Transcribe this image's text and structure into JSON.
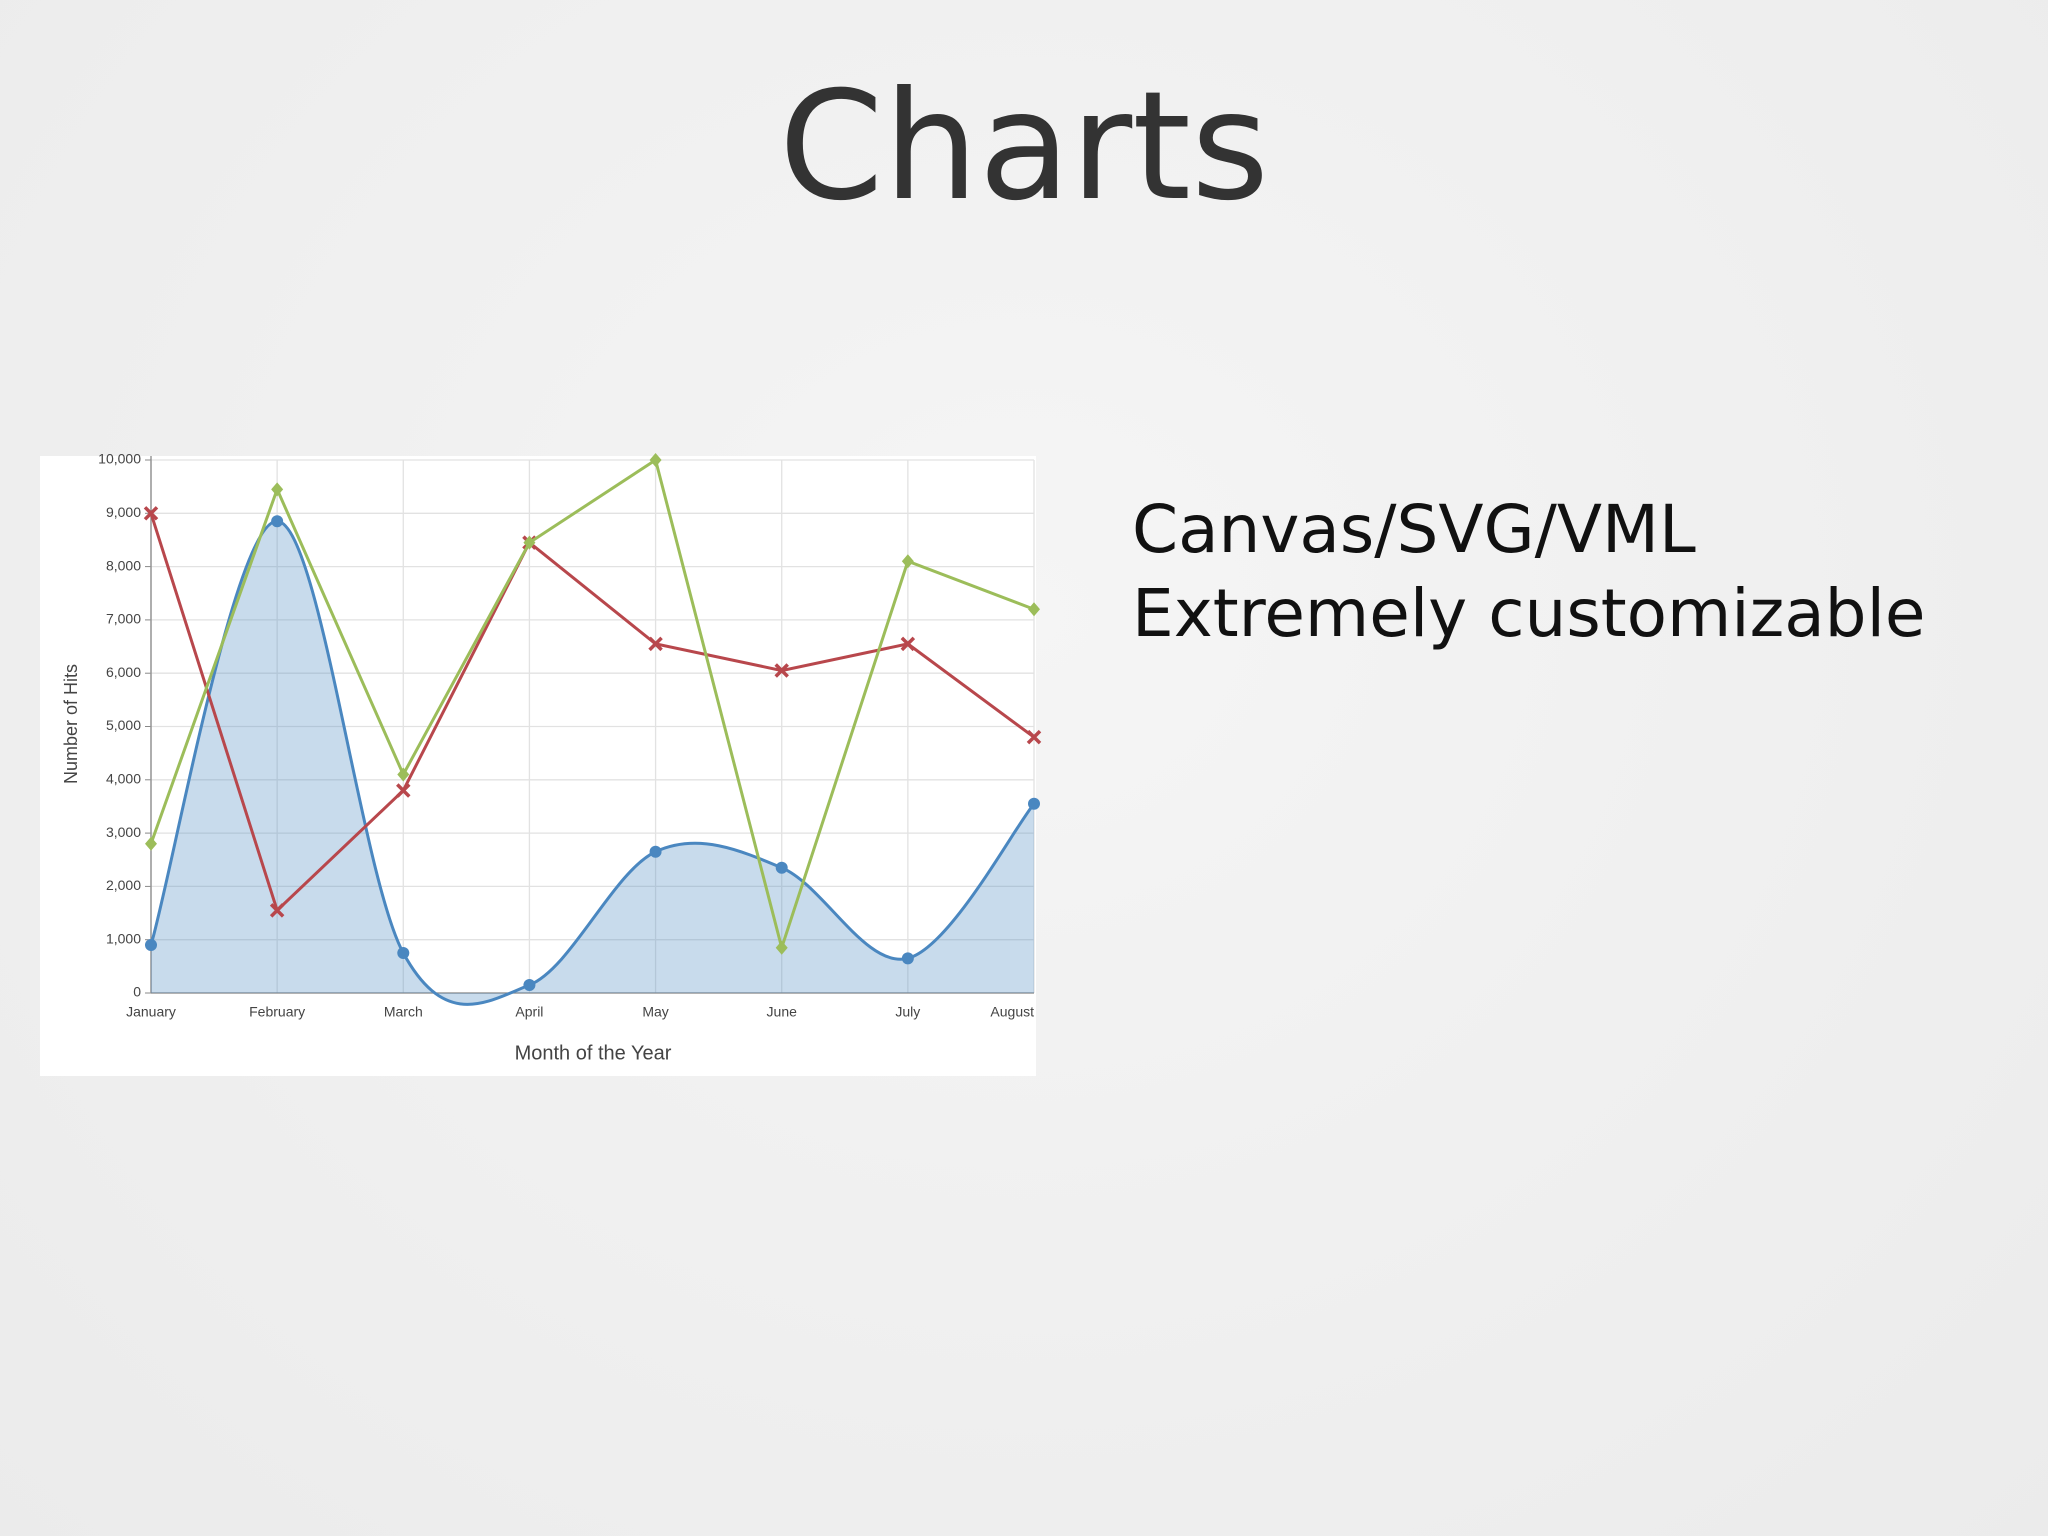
{
  "slide": {
    "title": "Charts",
    "bullets": [
      "Canvas/SVG/VML",
      "Extremely customizable"
    ]
  },
  "chart_data": {
    "type": "line",
    "x_label": "Month of the Year",
    "y_label": "Number of Hits",
    "categories": [
      "January",
      "February",
      "March",
      "April",
      "May",
      "June",
      "July",
      "August"
    ],
    "ylim": [
      0,
      10000
    ],
    "yticks": [
      0,
      {
        "value": 1000,
        "label": "1,000"
      },
      {
        "value": 2000,
        "label": "2,000"
      },
      {
        "value": 3000,
        "label": "3,000"
      },
      {
        "value": 4000,
        "label": "4,000"
      },
      {
        "value": 5000,
        "label": "5,000"
      },
      {
        "value": 6000,
        "label": "6,000"
      },
      {
        "value": 7000,
        "label": "7,000"
      },
      {
        "value": 8000,
        "label": "8,000"
      },
      {
        "value": 9000,
        "label": "9,000"
      },
      {
        "value": 10000,
        "label": "10,000"
      }
    ],
    "grid": true,
    "series": [
      {
        "color": "#4a87c0",
        "smooth": true,
        "area": true,
        "marker": "circle",
        "values": [
          900,
          8850,
          750,
          150,
          2650,
          2350,
          650,
          3550
        ]
      },
      {
        "color": "#b8474c",
        "smooth": false,
        "area": false,
        "marker": "x",
        "values": [
          9000,
          1550,
          3800,
          8450,
          6550,
          6050,
          6550,
          4800
        ]
      },
      {
        "color": "#9cbd5a",
        "smooth": false,
        "area": false,
        "marker": "diamond",
        "values": [
          2800,
          9450,
          4100,
          8450,
          10000,
          850,
          8100,
          7200
        ]
      }
    ]
  }
}
